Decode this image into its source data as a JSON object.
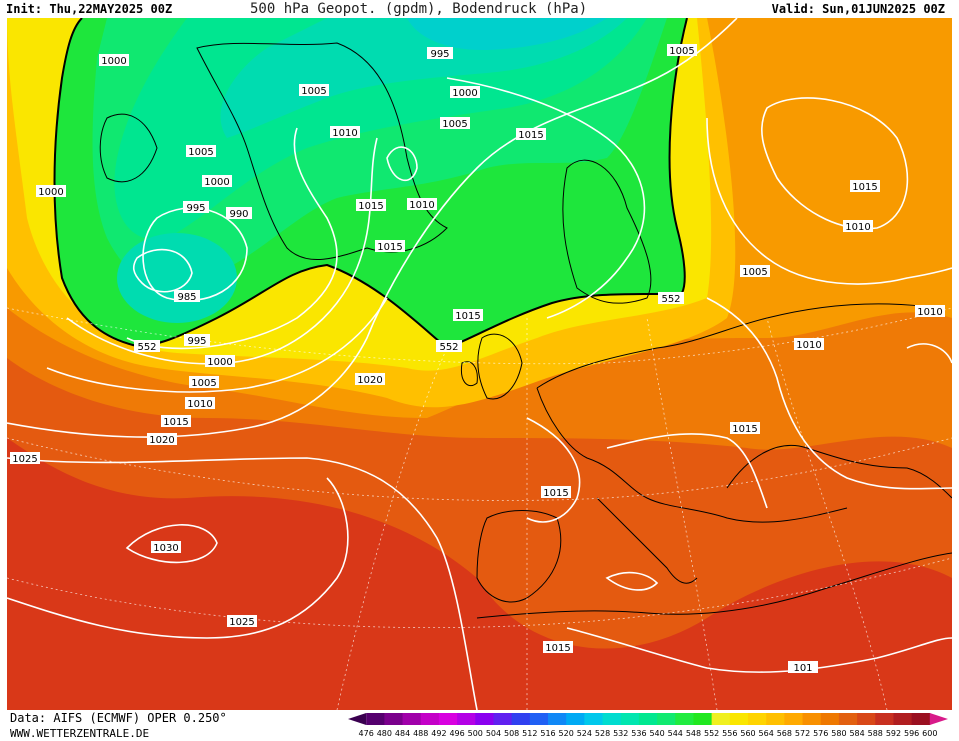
{
  "header": {
    "init": "Init: Thu,22MAY2025 00Z",
    "title": "500 hPa Geopot. (gpdm), Bodendruck (hPa)",
    "valid": "Valid: Sun,01JUN2025 00Z"
  },
  "footer": {
    "data_source": "Data: AIFS (ECMWF) OPER 0.250°",
    "website": "WWW.WETTERZENTRALE.DE"
  },
  "legend": {
    "ticks": [
      "476",
      "480",
      "484",
      "488",
      "492",
      "496",
      "500",
      "504",
      "508",
      "512",
      "516",
      "520",
      "524",
      "528",
      "532",
      "536",
      "540",
      "544",
      "548",
      "552",
      "556",
      "560",
      "564",
      "568",
      "572",
      "576",
      "580",
      "584",
      "588",
      "592",
      "596",
      "600"
    ],
    "colors": [
      "#3a0050",
      "#55006e",
      "#7a008c",
      "#a000aa",
      "#c400c8",
      "#d800e0",
      "#b400e6",
      "#8a00f0",
      "#6020f0",
      "#3040f0",
      "#2060f4",
      "#1088f6",
      "#00aaf4",
      "#00c8ec",
      "#00dcd0",
      "#00e6b0",
      "#00e890",
      "#10ea70",
      "#20ec40",
      "#20e820",
      "#f0f020",
      "#fae600",
      "#ffd400",
      "#ffc000",
      "#ffaa00",
      "#f89000",
      "#ee7800",
      "#e26010",
      "#d84818",
      "#c83020",
      "#b01e20",
      "#9a1020",
      "#d81a8a"
    ]
  },
  "map": {
    "contour_552_label": "552",
    "pressure_labels": [
      "1000",
      "1005",
      "1000",
      "1005",
      "1000",
      "995",
      "990",
      "985",
      "995",
      "1000",
      "1005",
      "1010",
      "1015",
      "1020",
      "1025",
      "1030",
      "1025",
      "995",
      "1005",
      "1000",
      "1010",
      "1015",
      "1010",
      "1015",
      "1020",
      "1015",
      "1005",
      "1015",
      "1010",
      "1005",
      "1010",
      "1010",
      "1015",
      "1015",
      "1015",
      "1015",
      "101"
    ]
  }
}
